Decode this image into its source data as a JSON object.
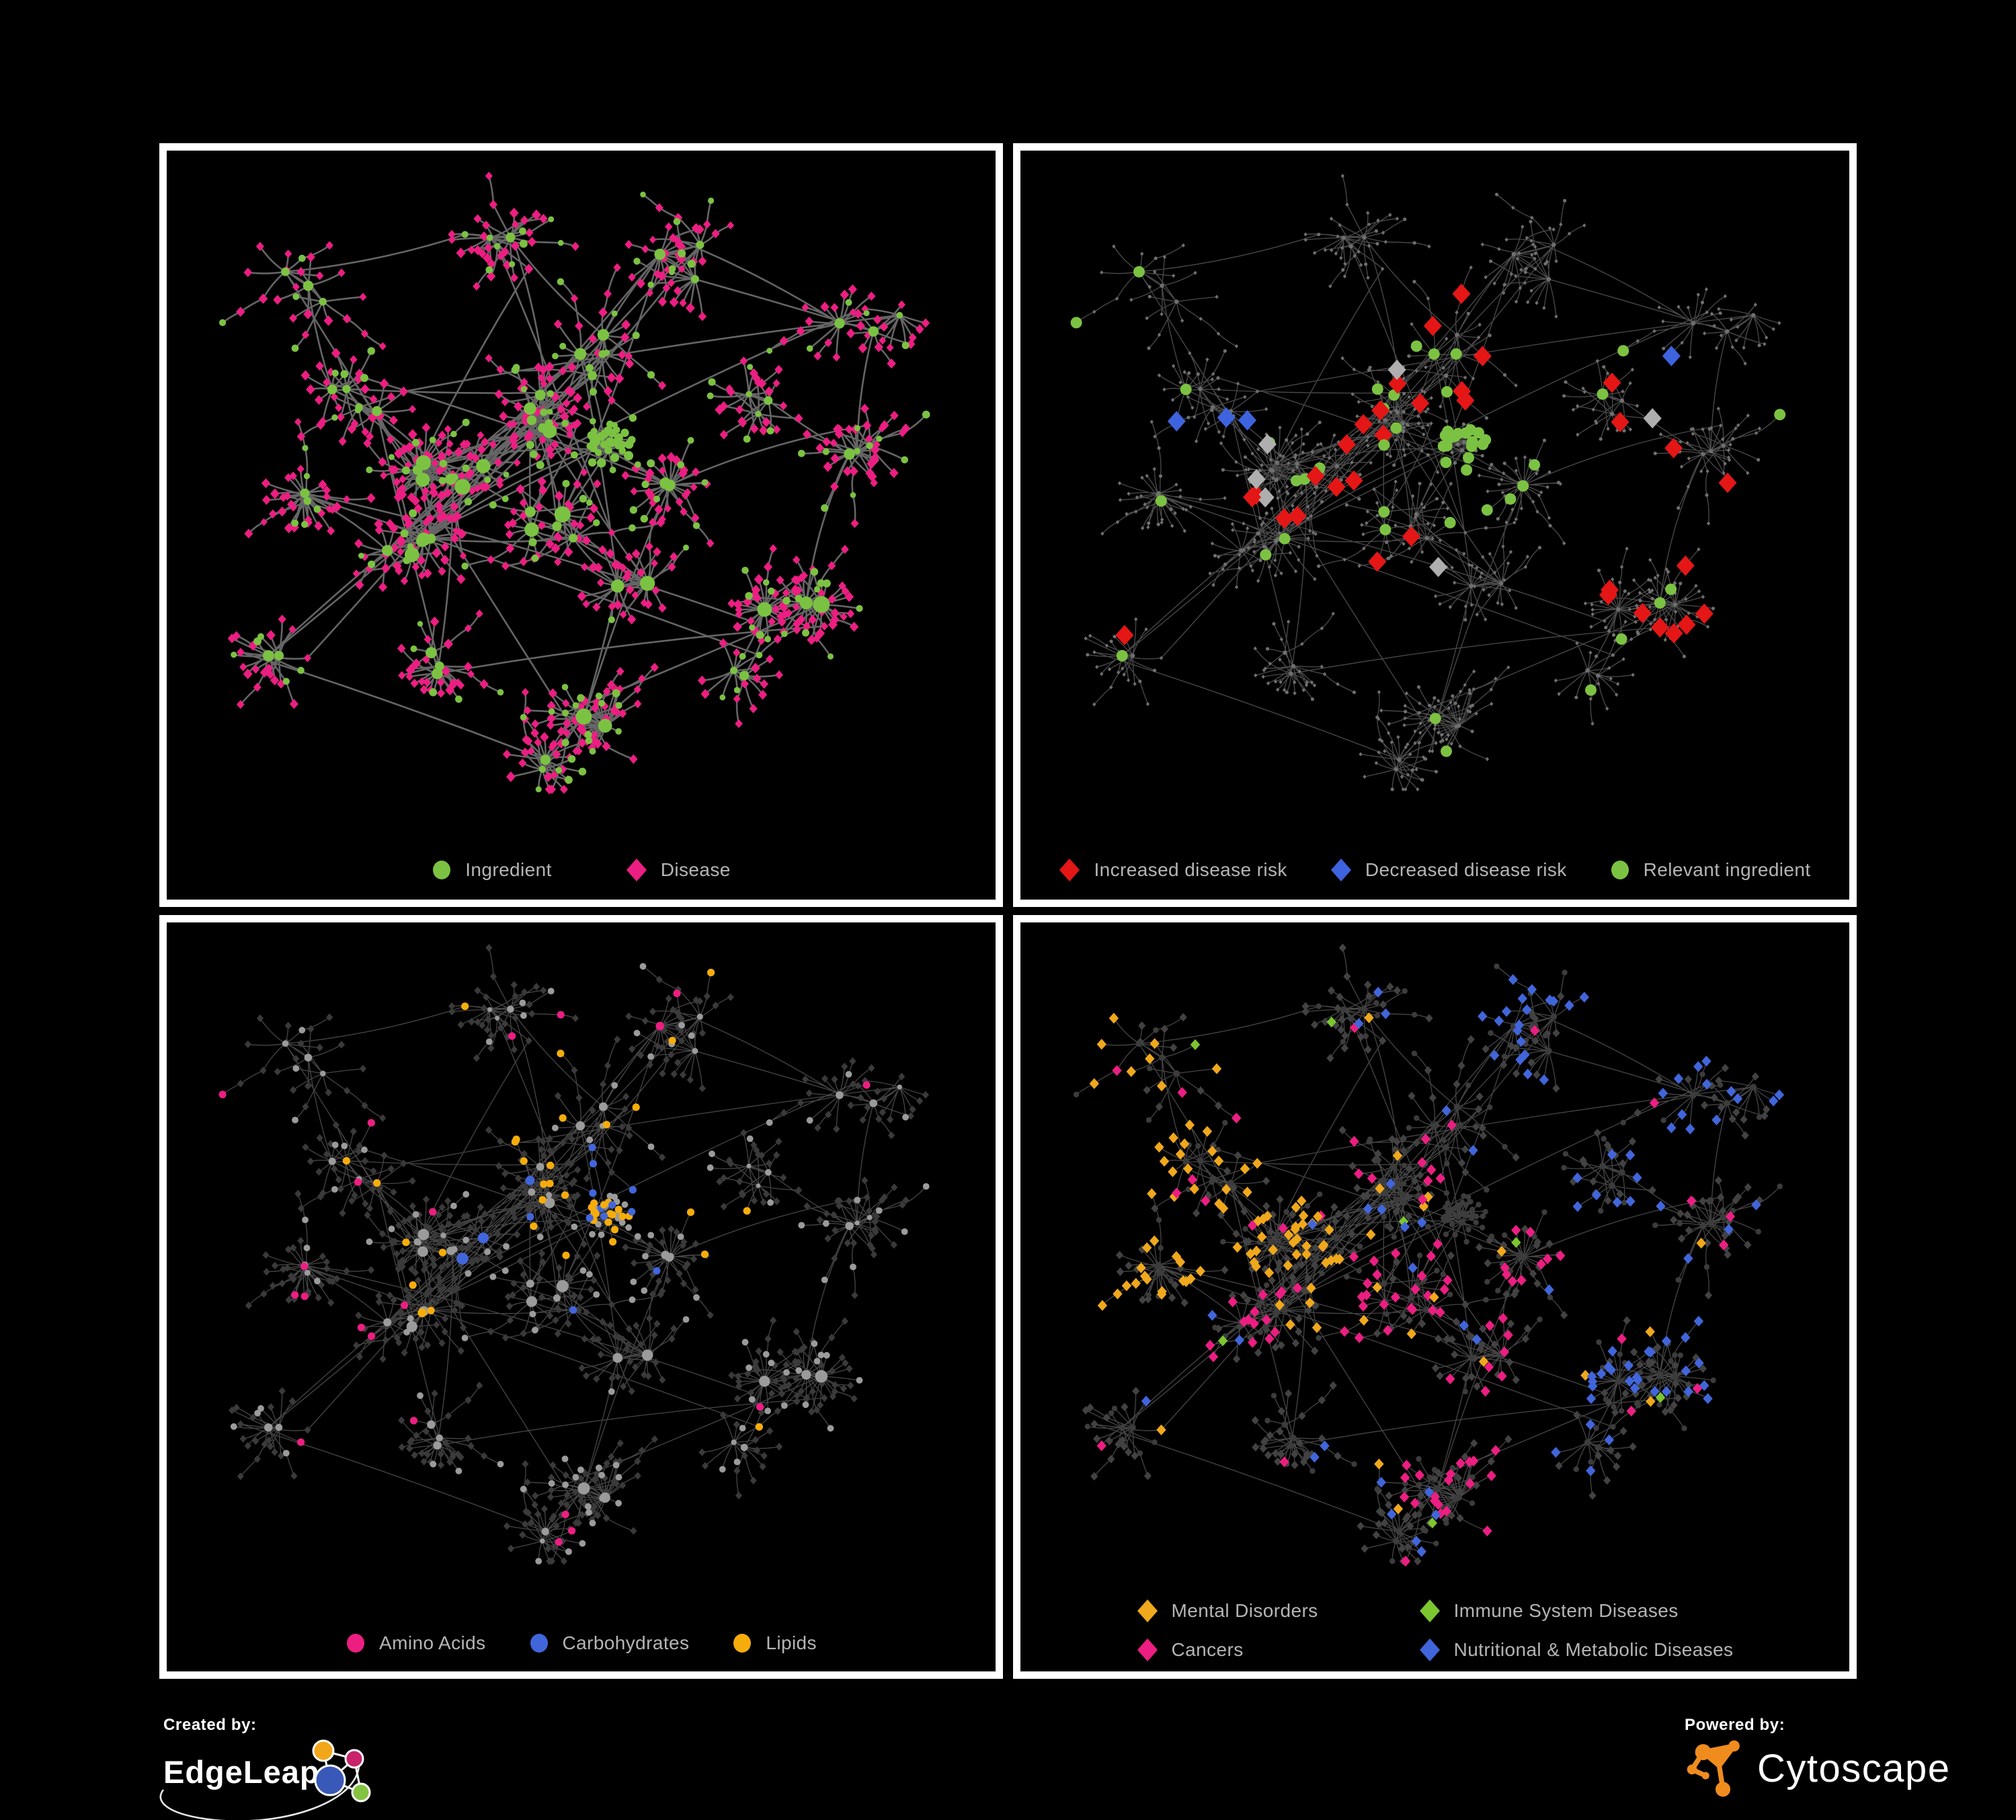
{
  "figure": {
    "background": "#000000",
    "panel_border": "#FFFFFF",
    "legend_text_color": "#B5B5B5"
  },
  "panels": [
    {
      "name": "ingredient-disease-network",
      "legend_layout": "row",
      "legend": [
        {
          "label": "Ingredient",
          "shape": "circle",
          "color": "#7CC242"
        },
        {
          "label": "Disease",
          "shape": "diamond",
          "color": "#EC1E82"
        }
      ],
      "style": {
        "edge_color": "#6E6E6E",
        "edge_width": 2.6,
        "circle_color": "#7CC242",
        "diamond_color": "#EC1E82"
      }
    },
    {
      "name": "disease-risk-network",
      "legend_layout": "row",
      "legend": [
        {
          "label": "Increased disease risk",
          "shape": "diamond",
          "color": "#E51616"
        },
        {
          "label": "Decreased disease risk",
          "shape": "diamond",
          "color": "#3E63DE"
        },
        {
          "label": "Relevant ingredient",
          "shape": "circle",
          "color": "#7CC242"
        }
      ],
      "style": {
        "edge_color": "#5E5E5E",
        "edge_width": 1.3,
        "base_color": "#6F6F6F",
        "highlight": {
          "red": "#E51616",
          "blue": "#3E63DE",
          "gray": "#AFAFAF",
          "green": "#7CC242"
        }
      }
    },
    {
      "name": "ingredient-classes-network",
      "legend_layout": "row",
      "legend": [
        {
          "label": "Amino Acids",
          "shape": "circle",
          "color": "#EC1E82"
        },
        {
          "label": "Carbohydrates",
          "shape": "circle",
          "color": "#4166DB"
        },
        {
          "label": "Lipids",
          "shape": "circle",
          "color": "#F6AD0B"
        }
      ],
      "style": {
        "edge_color": "#575757",
        "edge_width": 1.3,
        "circle_color": "#9B9B9B",
        "diamond_color": "#3A3A3A",
        "highlight": {
          "pink": "#EC1E82",
          "blue": "#4166DB",
          "orange": "#F6AD0B"
        }
      }
    },
    {
      "name": "disease-classes-network",
      "legend_layout": "grid",
      "legend": [
        {
          "label": "Mental Disorders",
          "shape": "diamond",
          "color": "#F0A81C"
        },
        {
          "label": "Immune System Diseases",
          "shape": "diamond",
          "color": "#7CC62F"
        },
        {
          "label": "Cancers",
          "shape": "diamond",
          "color": "#EC1E82"
        },
        {
          "label": "Nutritional & Metabolic Diseases",
          "shape": "diamond",
          "color": "#4166DB"
        }
      ],
      "style": {
        "edge_color": "#575757",
        "edge_width": 1.3,
        "circle_color": "#3C3C3C",
        "diamond_color": "#424242",
        "highlight": {
          "orange": "#F0A81C",
          "green": "#7CC62F",
          "pink": "#EC1E82",
          "blue": "#4166DB"
        }
      }
    }
  ],
  "footer": {
    "created_by": {
      "label": "Created by:",
      "brand": "EdgeLeap"
    },
    "powered_by": {
      "label": "Powered by:",
      "brand": "Cytoscape"
    },
    "edgeleap_colors": {
      "orange": "#F2A71B",
      "magenta": "#C8236B",
      "blue": "#3A58B8",
      "green": "#83C341"
    },
    "cytoscape_color": "#F08C1E"
  }
}
